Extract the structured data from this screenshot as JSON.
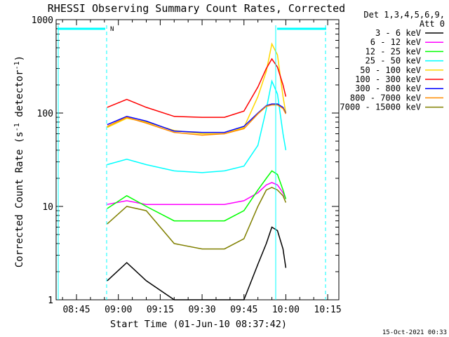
{
  "chart_data": {
    "type": "line",
    "title": "RHESSI Observing Summary Count Rates, Corrected",
    "xlabel": "Start Time (01-Jun-10 08:37:42)",
    "ylabel_main": "Corrected Count Rate (s",
    "ylabel_sup1": "-1",
    "ylabel_mid": " detector",
    "ylabel_sup2": "-1",
    "ylabel_end": ")",
    "yscale": "log",
    "ylim": [
      1,
      1000
    ],
    "xlim": [
      "08:37:42",
      "10:19:00"
    ],
    "y_tick_labels": [
      "1",
      "10",
      "100",
      "1000"
    ],
    "x_tick_labels": [
      "08:45",
      "09:00",
      "09:15",
      "09:30",
      "09:45",
      "10:00",
      "10:15"
    ],
    "footer_date": "15-Oct-2021 00:33",
    "legend_header_1": "Det 1,3,4,5,6,9,",
    "legend_header_2": "Att 0",
    "legend_placement": "right",
    "night_marker_label": "N",
    "night_marker_color": "#00ffff",
    "x_axis_times": [
      "08:56",
      "09:03",
      "09:10",
      "09:20",
      "09:30",
      "09:38",
      "09:45",
      "09:50",
      "09:53",
      "09:55",
      "09:57",
      "09:59",
      "10:00"
    ],
    "series": [
      {
        "name": "3 - 6 keV",
        "color": "#000000",
        "values": [
          1.6,
          2.5,
          1.6,
          1.0,
          1.0,
          1.0,
          1.0,
          2.4,
          4.0,
          6.0,
          5.5,
          3.5,
          2.2
        ]
      },
      {
        "name": "6 - 12 keV",
        "color": "#ff00ff",
        "values": [
          10.5,
          11.5,
          10.5,
          10.5,
          10.5,
          10.5,
          11.5,
          14,
          17,
          18,
          17,
          14,
          12
        ]
      },
      {
        "name": "12 - 25 keV",
        "color": "#00ff00",
        "values": [
          9.5,
          13,
          10,
          7,
          7,
          7,
          9,
          15,
          20,
          24,
          22,
          15,
          12
        ]
      },
      {
        "name": "25 - 50 keV",
        "color": "#00ffff",
        "values": [
          28,
          32,
          28,
          24,
          23,
          24,
          27,
          45,
          110,
          220,
          160,
          60,
          40
        ]
      },
      {
        "name": "50 - 100 keV",
        "color": "#ffd700",
        "values": [
          70,
          88,
          80,
          65,
          60,
          60,
          70,
          150,
          280,
          550,
          420,
          150,
          100
        ]
      },
      {
        "name": "100 - 300 keV",
        "color": "#ff0000",
        "values": [
          115,
          140,
          115,
          92,
          90,
          90,
          105,
          190,
          300,
          380,
          310,
          200,
          150
        ]
      },
      {
        "name": "300 - 800 keV",
        "color": "#0000ff",
        "values": [
          75,
          92,
          82,
          64,
          62,
          62,
          72,
          100,
          120,
          125,
          125,
          115,
          100
        ]
      },
      {
        "name": "800 - 7000 keV",
        "color": "#ff8c00",
        "values": [
          72,
          90,
          78,
          62,
          58,
          60,
          68,
          98,
          118,
          122,
          122,
          112,
          98
        ]
      },
      {
        "name": "7000 - 15000 keV",
        "color": "#808000",
        "values": [
          6.5,
          10,
          9,
          4,
          3.5,
          3.5,
          4.5,
          10,
          15,
          16,
          15,
          13,
          11
        ]
      }
    ]
  }
}
